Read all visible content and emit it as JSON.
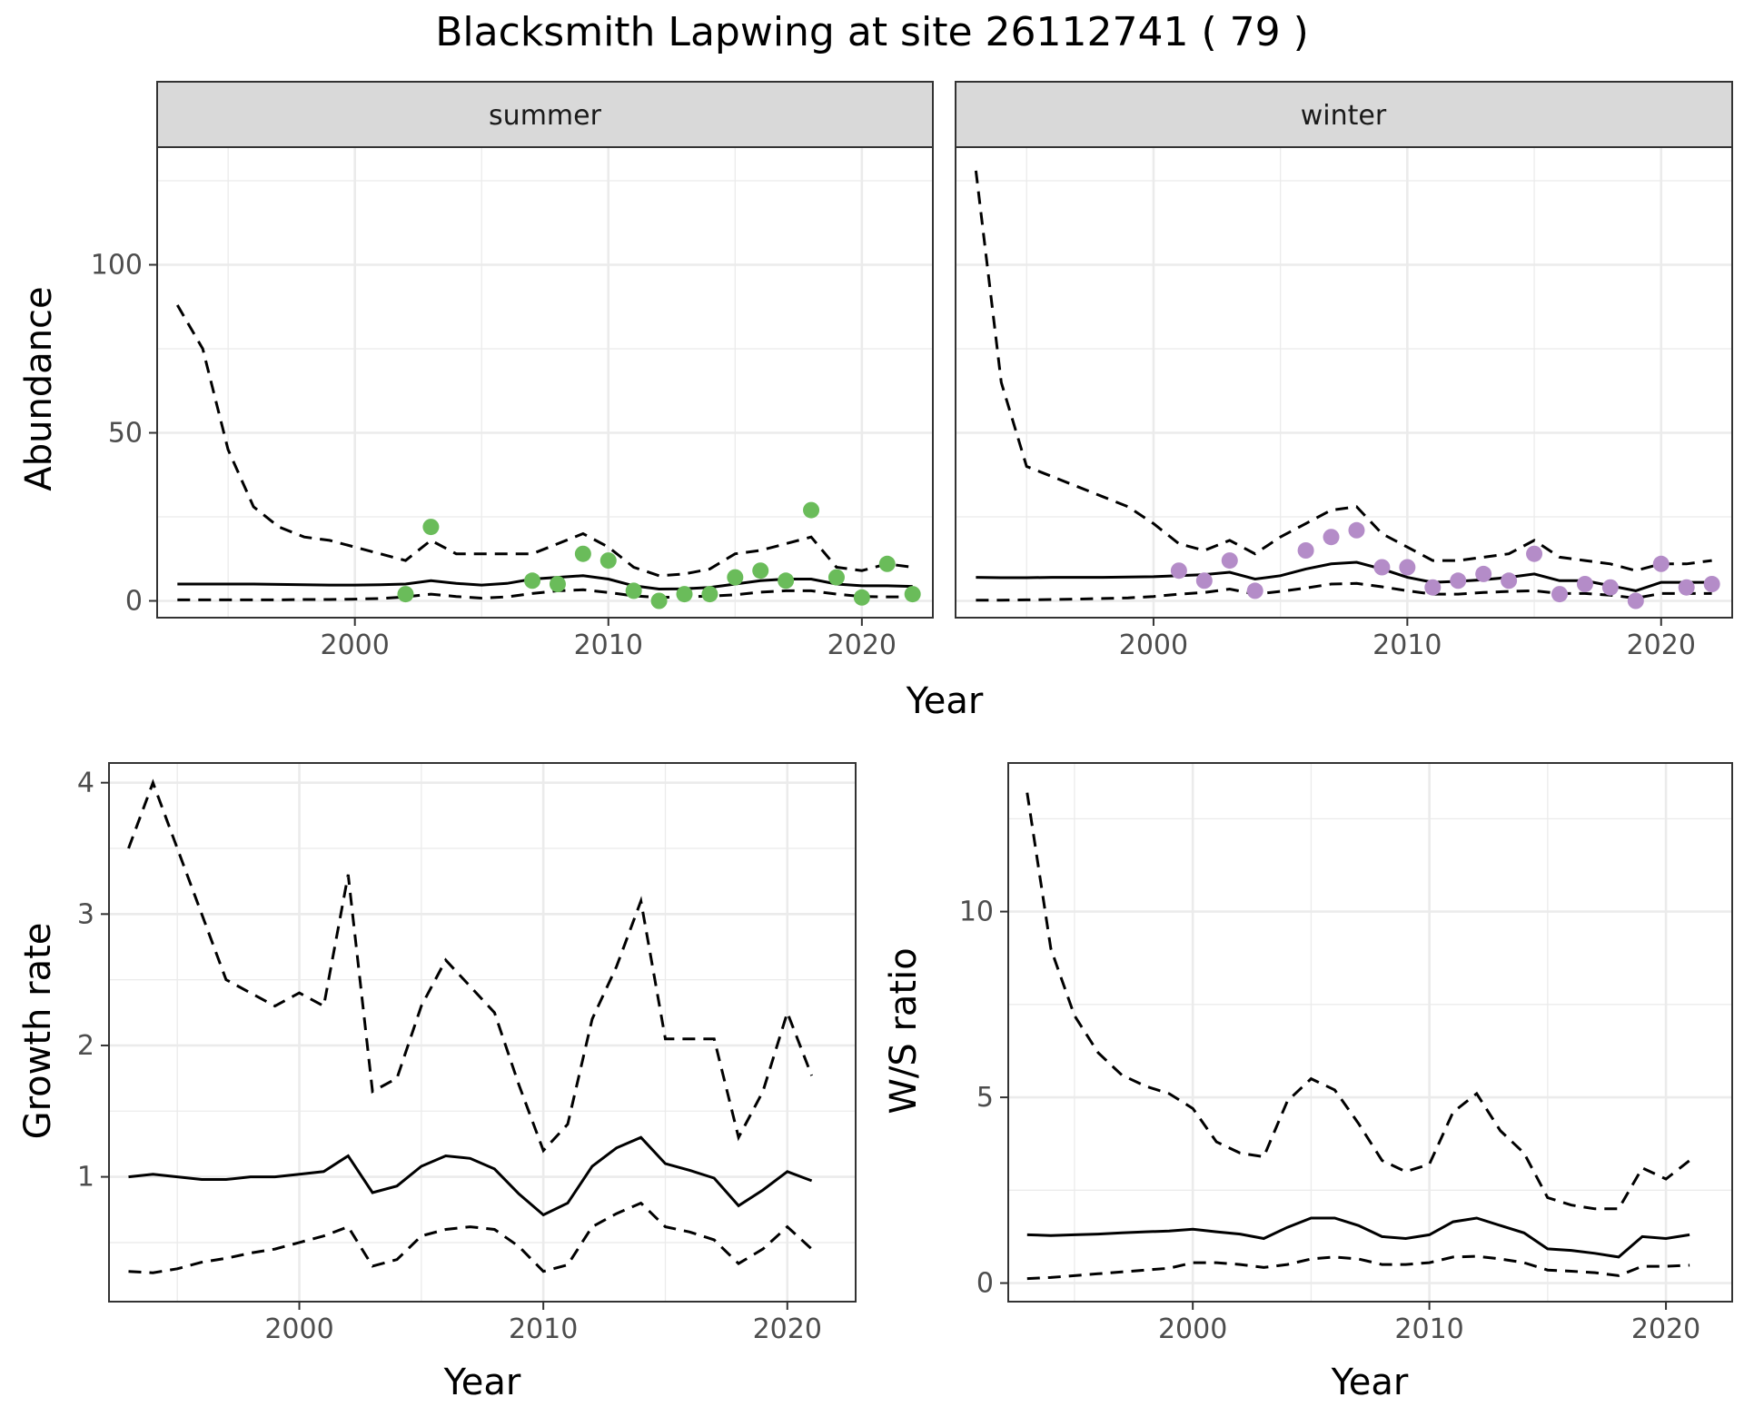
{
  "title": "Blacksmith Lapwing at site 26112741 ( 79 )",
  "colors": {
    "summer": "#6ABC5A",
    "winter": "#B48CC8",
    "strip_bg": "#D9D9D9"
  },
  "chart_data": [
    {
      "id": "abundance",
      "type": "line",
      "facets": [
        "summer",
        "winter"
      ],
      "xlabel": "Year",
      "ylabel": "Abundance",
      "xlim": [
        1992.2,
        2022.8
      ],
      "ylim": [
        -5,
        135
      ],
      "x_ticks": [
        2000,
        2010,
        2020
      ],
      "y_ticks": [
        0,
        50,
        100
      ],
      "grid": true,
      "panels": [
        {
          "name": "summer",
          "x": [
            1993,
            1994,
            1995,
            1996,
            1997,
            1998,
            1999,
            2000,
            2001,
            2002,
            2003,
            2004,
            2005,
            2006,
            2007,
            2008,
            2009,
            2010,
            2011,
            2012,
            2013,
            2014,
            2015,
            2016,
            2017,
            2018,
            2019,
            2020,
            2021,
            2022
          ],
          "mean": [
            5,
            5,
            5,
            5,
            4.9,
            4.8,
            4.7,
            4.7,
            4.8,
            5,
            6,
            5.2,
            4.7,
            5.2,
            6.5,
            7,
            7.5,
            6.5,
            4.5,
            3.5,
            3.6,
            4,
            5,
            6,
            6.5,
            6.5,
            5,
            4.5,
            4.5,
            4.3
          ],
          "lower": [
            0.3,
            0.3,
            0.3,
            0.3,
            0.3,
            0.4,
            0.4,
            0.5,
            0.7,
            1.2,
            2,
            1.3,
            0.8,
            1.2,
            2.2,
            3,
            3.3,
            2.5,
            1.5,
            1,
            1.2,
            1.4,
            1.8,
            2.6,
            3,
            3,
            2,
            1.3,
            1.2,
            1.2
          ],
          "upper": [
            88,
            75,
            45,
            28,
            22,
            19,
            18,
            16,
            14,
            12,
            18,
            14,
            14,
            14,
            14,
            17,
            20,
            16,
            10,
            7.5,
            8,
            9.5,
            14,
            15,
            17,
            19,
            10,
            9,
            11,
            10
          ],
          "observed": {
            "x": [
              2002,
              2003,
              2007,
              2008,
              2009,
              2010,
              2011,
              2012,
              2013,
              2014,
              2015,
              2016,
              2017,
              2018,
              2019,
              2020,
              2021,
              2022
            ],
            "y": [
              2,
              22,
              6,
              5,
              14,
              12,
              3,
              0,
              2,
              2,
              7,
              9,
              6,
              27,
              7,
              1,
              11,
              2
            ]
          }
        },
        {
          "name": "winter",
          "x": [
            1993,
            1994,
            1995,
            1996,
            1997,
            1998,
            1999,
            2000,
            2001,
            2002,
            2003,
            2004,
            2005,
            2006,
            2007,
            2008,
            2009,
            2010,
            2011,
            2012,
            2013,
            2014,
            2015,
            2016,
            2017,
            2018,
            2019,
            2020,
            2021,
            2022
          ],
          "mean": [
            7,
            6.9,
            6.9,
            7,
            7,
            7,
            7.1,
            7.2,
            7.5,
            7.8,
            8.5,
            6.5,
            7.5,
            9.5,
            11,
            11.5,
            9.5,
            7,
            5.5,
            5.8,
            6.3,
            7,
            8,
            6,
            6,
            4.5,
            3,
            5.5,
            5.5,
            5.5
          ],
          "lower": [
            0.2,
            0.2,
            0.3,
            0.4,
            0.5,
            0.7,
            0.9,
            1.3,
            2,
            2.5,
            3.5,
            2,
            2.8,
            3.8,
            5,
            5.2,
            4.2,
            3,
            2,
            2,
            2.5,
            2.8,
            3,
            2.2,
            2.2,
            1.7,
            0.8,
            2.2,
            2.2,
            2.2
          ],
          "upper": [
            128,
            65,
            40,
            37,
            34,
            31,
            28,
            23,
            17,
            15,
            18,
            14,
            19,
            23,
            27,
            28,
            20,
            16,
            12,
            12,
            13,
            14,
            18,
            13,
            12,
            11,
            9,
            11,
            11,
            12
          ],
          "observed": {
            "x": [
              2001,
              2002,
              2003,
              2004,
              2006,
              2007,
              2008,
              2009,
              2010,
              2011,
              2012,
              2013,
              2014,
              2015,
              2016,
              2017,
              2018,
              2019,
              2020,
              2021,
              2022
            ],
            "y": [
              9,
              6,
              12,
              3,
              15,
              19,
              21,
              10,
              10,
              4,
              6,
              8,
              6,
              14,
              2,
              5,
              4,
              0,
              11,
              4,
              5
            ]
          }
        }
      ]
    },
    {
      "id": "growth",
      "type": "line",
      "xlabel": "Year",
      "ylabel": "Growth rate",
      "xlim": [
        1992.2,
        2022.8
      ],
      "ylim": [
        0.05,
        4.15
      ],
      "x_ticks": [
        2000,
        2010,
        2020
      ],
      "y_ticks": [
        1,
        2,
        3,
        4
      ],
      "grid": true,
      "x": [
        1993,
        1994,
        1995,
        1996,
        1997,
        1998,
        1999,
        2000,
        2001,
        2002,
        2003,
        2004,
        2005,
        2006,
        2007,
        2008,
        2009,
        2010,
        2011,
        2012,
        2013,
        2014,
        2015,
        2016,
        2017,
        2018,
        2019,
        2020,
        2021
      ],
      "mean": [
        1,
        1.02,
        1,
        0.98,
        0.98,
        1,
        1,
        1.02,
        1.04,
        1.16,
        0.88,
        0.93,
        1.08,
        1.16,
        1.14,
        1.06,
        0.87,
        0.71,
        0.8,
        1.08,
        1.22,
        1.3,
        1.1,
        1.05,
        0.99,
        0.78,
        0.9,
        1.04,
        0.97
      ],
      "lower": [
        0.28,
        0.27,
        0.3,
        0.35,
        0.38,
        0.42,
        0.45,
        0.5,
        0.55,
        0.62,
        0.32,
        0.37,
        0.55,
        0.6,
        0.62,
        0.6,
        0.47,
        0.28,
        0.33,
        0.62,
        0.72,
        0.8,
        0.62,
        0.58,
        0.52,
        0.34,
        0.45,
        0.62,
        0.45
      ],
      "upper": [
        3.5,
        4,
        3.5,
        3,
        2.5,
        2.4,
        2.3,
        2.4,
        2.3,
        3.3,
        1.65,
        1.75,
        2.3,
        2.65,
        2.45,
        2.25,
        1.7,
        1.2,
        1.4,
        2.2,
        2.6,
        3.1,
        2.05,
        2.05,
        2.05,
        1.3,
        1.65,
        2.25,
        1.77
      ]
    },
    {
      "id": "ratio",
      "type": "line",
      "xlabel": "Year",
      "ylabel": "W/S ratio",
      "xlim": [
        1992.2,
        2022.8
      ],
      "ylim": [
        -0.5,
        14
      ],
      "x_ticks": [
        2000,
        2010,
        2020
      ],
      "y_ticks": [
        0,
        5,
        10
      ],
      "grid": true,
      "x": [
        1993,
        1994,
        1995,
        1996,
        1997,
        1998,
        1999,
        2000,
        2001,
        2002,
        2003,
        2004,
        2005,
        2006,
        2007,
        2008,
        2009,
        2010,
        2011,
        2012,
        2013,
        2014,
        2015,
        2016,
        2017,
        2018,
        2019,
        2020,
        2021
      ],
      "mean": [
        1.3,
        1.28,
        1.3,
        1.32,
        1.35,
        1.38,
        1.4,
        1.45,
        1.38,
        1.32,
        1.2,
        1.5,
        1.75,
        1.75,
        1.55,
        1.25,
        1.2,
        1.3,
        1.65,
        1.75,
        1.55,
        1.35,
        0.92,
        0.88,
        0.8,
        0.7,
        1.25,
        1.2,
        1.3
      ],
      "lower": [
        0.12,
        0.15,
        0.2,
        0.25,
        0.3,
        0.35,
        0.4,
        0.55,
        0.55,
        0.5,
        0.42,
        0.5,
        0.65,
        0.7,
        0.65,
        0.5,
        0.5,
        0.55,
        0.7,
        0.72,
        0.65,
        0.55,
        0.35,
        0.32,
        0.28,
        0.2,
        0.45,
        0.45,
        0.48
      ],
      "upper": [
        13.2,
        9,
        7.2,
        6.2,
        5.6,
        5.3,
        5.1,
        4.7,
        3.8,
        3.5,
        3.4,
        4.9,
        5.5,
        5.2,
        4.3,
        3.3,
        3,
        3.2,
        4.6,
        5.1,
        4.1,
        3.5,
        2.3,
        2.1,
        2,
        2,
        3.1,
        2.8,
        3.3
      ]
    }
  ]
}
